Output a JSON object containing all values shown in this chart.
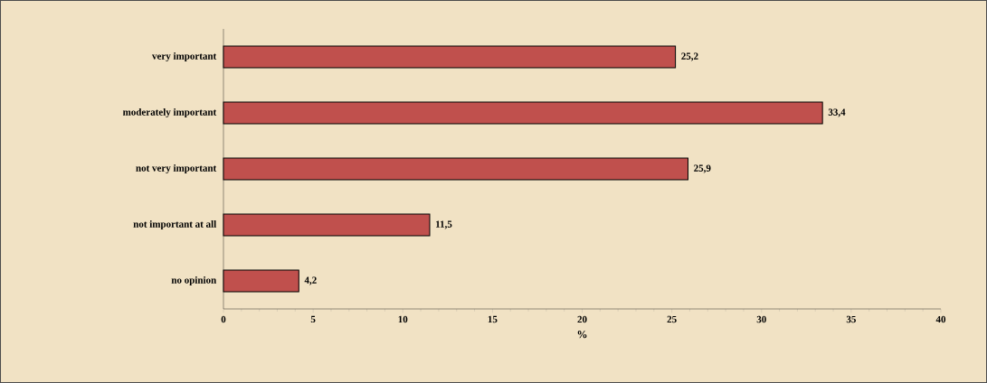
{
  "chart_data": {
    "type": "bar",
    "orientation": "horizontal",
    "xlabel": "%",
    "categories": [
      "very important",
      "moderately important",
      "not very important",
      "not important at all",
      "no opinion"
    ],
    "values": [
      25.2,
      33.4,
      25.9,
      11.5,
      4.2
    ],
    "value_labels": [
      "25,2",
      "33,4",
      "25,9",
      "11,5",
      "4,2"
    ],
    "color": "#c0504d",
    "xlim": [
      0,
      40
    ],
    "xticks": [
      0,
      5,
      10,
      15,
      20,
      25,
      30,
      35,
      40
    ],
    "grid": false
  }
}
